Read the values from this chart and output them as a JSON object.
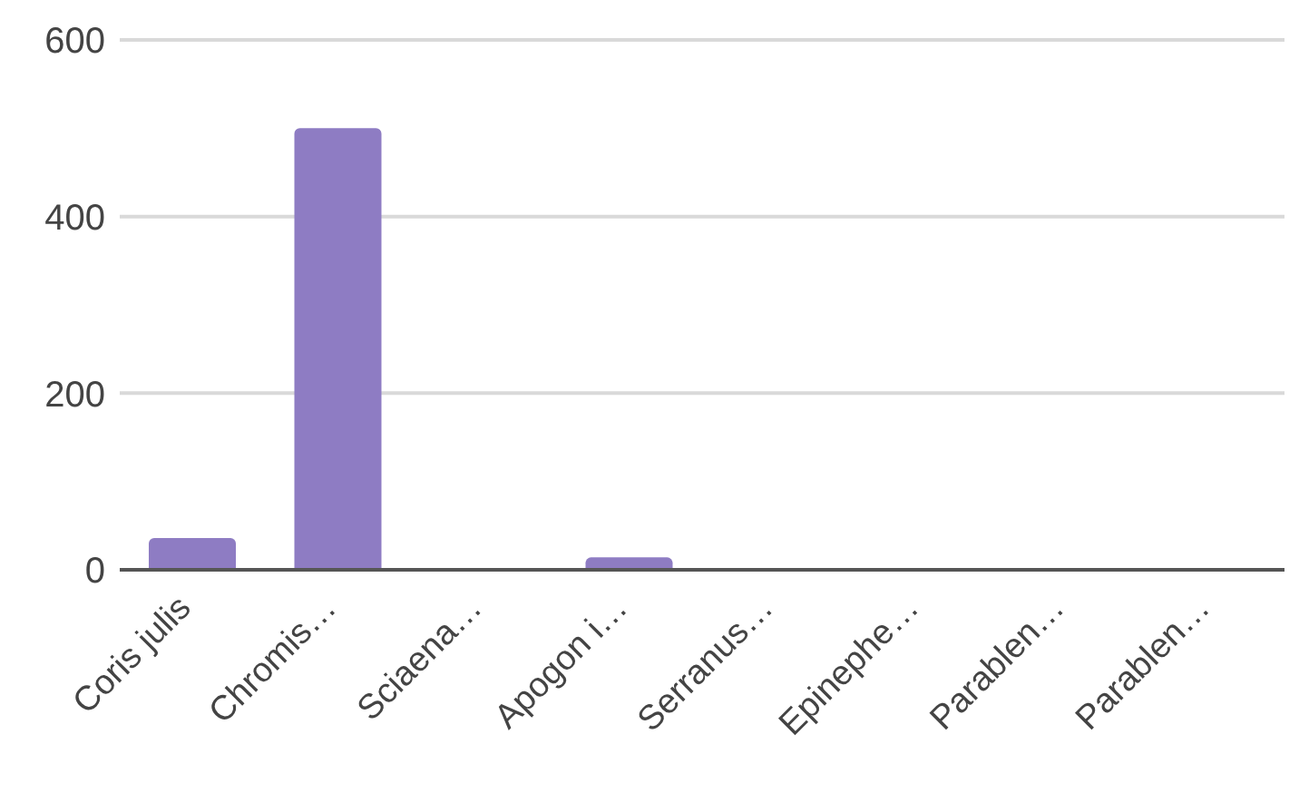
{
  "chart_data": {
    "type": "bar",
    "categories": [
      "Coris julis",
      "Chromis…",
      "Sciaena…",
      "Apogon i…",
      "Serranus…",
      "Epinephe…",
      "Parablen…",
      "Parablen…"
    ],
    "values": [
      36,
      500,
      0,
      14,
      0,
      0,
      0,
      0
    ],
    "color": "#8e7cc3",
    "ylim": [
      0,
      600
    ],
    "yticks": [
      0,
      200,
      400,
      600
    ],
    "grid": "y"
  }
}
